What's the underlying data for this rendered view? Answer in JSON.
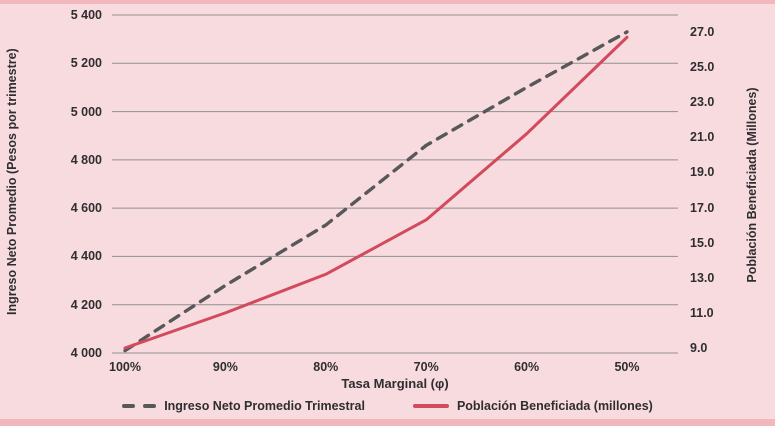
{
  "chart_data": {
    "type": "line",
    "categories": [
      "100%",
      "90%",
      "80%",
      "70%",
      "60%",
      "50%"
    ],
    "xlabel": "Tasa Marginal (φ)",
    "y_left": {
      "label": "Ingreso Neto Promedio (Pesos por trimestre)",
      "min": 4000,
      "max": 5400,
      "ticks": [
        "5 400",
        "5 200",
        "5 000",
        "4 800",
        "4 600",
        "4 400",
        "4 200",
        "4 000"
      ],
      "tick_values": [
        5400,
        5200,
        5000,
        4800,
        4600,
        4400,
        4200,
        4000
      ]
    },
    "y_right": {
      "label": "Población Beneficiada (Millones)",
      "min": 9.0,
      "max": 27.0,
      "ticks": [
        "27.0",
        "25.0",
        "23.0",
        "21.0",
        "19.0",
        "17.0",
        "15.0",
        "13.0",
        "11.0",
        "9.0"
      ],
      "tick_values": [
        27.0,
        25.0,
        23.0,
        21.0,
        19.0,
        17.0,
        15.0,
        13.0,
        11.0,
        9.0
      ]
    },
    "series": [
      {
        "name": "Ingreso Neto Promedio Trimestral",
        "axis": "left",
        "style": "dashed",
        "color": "#57585a",
        "values": [
          4010,
          4280,
          4530,
          4860,
          5100,
          5330
        ]
      },
      {
        "name": "Población Beneficiada (millones)",
        "axis": "right",
        "style": "solid",
        "color": "#d24a5c",
        "values": [
          9.0,
          11.0,
          13.2,
          16.3,
          21.2,
          26.7
        ]
      }
    ],
    "grid": "horizontal",
    "legend_position": "bottom"
  },
  "colors": {
    "background": "#f8dbde",
    "edge_strip": "#f1b7bd",
    "gridline": "#8f8f90",
    "dashed_line": "#57585a",
    "solid_line": "#d24a5c",
    "text": "#2e2e30"
  }
}
